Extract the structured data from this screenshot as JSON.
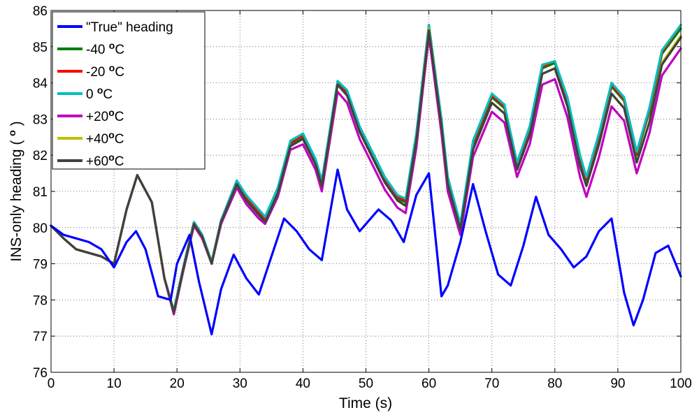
{
  "chart_data": {
    "type": "line",
    "xlabel": "Time (s)",
    "ylabel_prefix": "INS-only heading ( ",
    "ylabel_sup": "o",
    "ylabel_suffix": " )",
    "xlim": [
      0,
      100
    ],
    "ylim": [
      76,
      86
    ],
    "xticks": [
      0,
      10,
      20,
      30,
      40,
      50,
      60,
      70,
      80,
      90,
      100
    ],
    "yticks": [
      76,
      77,
      78,
      79,
      80,
      81,
      82,
      83,
      84,
      85,
      86
    ],
    "grid": true,
    "legend_position": "top-left",
    "series": [
      {
        "name": "true",
        "label_main": "\"True\" heading",
        "label_sup": "",
        "label_tail": "",
        "color": "#0000ff",
        "x": [
          0,
          2,
          4,
          6,
          8,
          10,
          12,
          13.5,
          15,
          17,
          19,
          20,
          22,
          23.5,
          25.5,
          27,
          29,
          31,
          33,
          35,
          37,
          39,
          41,
          43,
          45.5,
          47,
          49,
          52,
          54,
          56,
          58,
          60,
          62,
          63,
          65,
          67,
          69,
          71,
          73,
          75,
          77,
          79,
          81,
          83,
          85,
          87,
          89,
          91,
          92.5,
          94,
          96,
          98,
          100
        ],
        "y": [
          80.05,
          79.8,
          79.7,
          79.6,
          79.4,
          78.9,
          79.6,
          79.9,
          79.4,
          78.1,
          78.0,
          79.0,
          79.8,
          78.5,
          77.05,
          78.3,
          79.25,
          78.6,
          78.15,
          79.2,
          80.25,
          79.9,
          79.4,
          79.1,
          81.6,
          80.5,
          79.9,
          80.5,
          80.2,
          79.6,
          80.9,
          81.5,
          78.1,
          78.4,
          79.6,
          81.2,
          79.9,
          78.7,
          78.4,
          79.5,
          80.85,
          79.8,
          79.4,
          78.9,
          79.2,
          79.9,
          80.25,
          78.2,
          77.3,
          78.0,
          79.3,
          79.5,
          78.65
        ]
      },
      {
        "name": "m40",
        "label_main": "-40 ",
        "label_sup": "o",
        "label_tail": "C",
        "color": "#007f00",
        "x": [
          0,
          2,
          4,
          6,
          8,
          10,
          12,
          13.7,
          16,
          18,
          19.5,
          21,
          22.7,
          24,
          25.5,
          27,
          29.5,
          31,
          33,
          34,
          36,
          38,
          40,
          42,
          43,
          45.5,
          47,
          49,
          51,
          53,
          55,
          56.3,
          58,
          60,
          62,
          63,
          65,
          67,
          70,
          72,
          74,
          76,
          78,
          80,
          82,
          84,
          85,
          87,
          89,
          91,
          93,
          95,
          97,
          100
        ],
        "y": [
          80.05,
          79.7,
          79.4,
          79.3,
          79.2,
          79.0,
          80.5,
          81.45,
          80.7,
          78.6,
          77.7,
          78.9,
          80.15,
          79.8,
          79.05,
          80.2,
          81.25,
          80.8,
          80.4,
          80.2,
          81.0,
          82.3,
          82.5,
          81.8,
          81.2,
          84.0,
          83.7,
          82.7,
          82.0,
          81.3,
          80.8,
          80.7,
          82.5,
          85.6,
          82.9,
          81.3,
          80.0,
          82.3,
          83.6,
          83.3,
          81.7,
          82.7,
          84.4,
          84.55,
          83.5,
          81.9,
          81.3,
          82.5,
          83.9,
          83.5,
          82.0,
          83.2,
          84.8,
          85.5
        ]
      },
      {
        "name": "m20",
        "label_main": "-20 ",
        "label_sup": "o",
        "label_tail": "C",
        "color": "#ff0000",
        "x": [
          0,
          2,
          4,
          6,
          8,
          10,
          12,
          13.7,
          16,
          18,
          19.5,
          21,
          22.7,
          24,
          25.5,
          27,
          29.5,
          31,
          33,
          34,
          36,
          38,
          40,
          42,
          43,
          45.5,
          47,
          49,
          51,
          53,
          55,
          56.3,
          58,
          60,
          62,
          63,
          65,
          67,
          70,
          72,
          74,
          76,
          78,
          80,
          82,
          84,
          85,
          87,
          89,
          91,
          93,
          95,
          97,
          100
        ],
        "y": [
          80.05,
          79.7,
          79.4,
          79.3,
          79.2,
          79.0,
          80.5,
          81.45,
          80.7,
          78.6,
          77.7,
          78.9,
          80.15,
          79.8,
          79.05,
          80.2,
          81.3,
          80.85,
          80.45,
          80.25,
          81.05,
          82.35,
          82.55,
          81.85,
          81.25,
          84.05,
          83.75,
          82.75,
          82.05,
          81.35,
          80.85,
          80.75,
          82.55,
          85.6,
          82.95,
          81.35,
          80.05,
          82.35,
          83.65,
          83.35,
          81.75,
          82.75,
          84.45,
          84.6,
          83.55,
          81.95,
          81.35,
          82.55,
          83.95,
          83.55,
          82.05,
          83.25,
          84.85,
          85.6
        ]
      },
      {
        "name": "z0",
        "label_main": "  0 ",
        "label_sup": "o",
        "label_tail": "C",
        "color": "#00bfbf",
        "x": [
          0,
          2,
          4,
          6,
          8,
          10,
          12,
          13.7,
          16,
          18,
          19.5,
          21,
          22.7,
          24,
          25.5,
          27,
          29.5,
          31,
          33,
          34,
          36,
          38,
          40,
          42,
          43,
          45.5,
          47,
          49,
          51,
          53,
          55,
          56.3,
          58,
          60,
          62,
          63,
          65,
          67,
          70,
          72,
          74,
          76,
          78,
          80,
          82,
          84,
          85,
          87,
          89,
          91,
          93,
          95,
          97,
          100
        ],
        "y": [
          80.05,
          79.7,
          79.4,
          79.3,
          79.2,
          79.0,
          80.5,
          81.45,
          80.7,
          78.6,
          77.7,
          78.9,
          80.15,
          79.8,
          79.05,
          80.2,
          81.3,
          80.9,
          80.5,
          80.3,
          81.1,
          82.4,
          82.6,
          81.9,
          81.3,
          84.05,
          83.8,
          82.8,
          82.1,
          81.4,
          80.9,
          80.8,
          82.6,
          85.6,
          83.0,
          81.4,
          80.1,
          82.4,
          83.7,
          83.4,
          81.8,
          82.8,
          84.5,
          84.6,
          83.6,
          82.0,
          81.4,
          82.6,
          84.0,
          83.6,
          82.1,
          83.3,
          84.9,
          85.6
        ]
      },
      {
        "name": "p20",
        "label_main": "+20",
        "label_sup": "o",
        "label_tail": "C",
        "color": "#bf00bf",
        "x": [
          0,
          2,
          4,
          6,
          8,
          10,
          12,
          13.7,
          16,
          18,
          19.5,
          21,
          22.7,
          24,
          25.5,
          27,
          29.5,
          31,
          33,
          34,
          36,
          38,
          40,
          42,
          43,
          45.5,
          47,
          49,
          51,
          53,
          55,
          56.3,
          58,
          60,
          62,
          63,
          65,
          67,
          70,
          72,
          74,
          76,
          78,
          80,
          82,
          84,
          85,
          87,
          89,
          91,
          93,
          95,
          97,
          100
        ],
        "y": [
          80.05,
          79.7,
          79.4,
          79.3,
          79.2,
          79.0,
          80.5,
          81.45,
          80.7,
          78.6,
          77.6,
          78.8,
          80.05,
          79.7,
          79.0,
          80.1,
          81.1,
          80.65,
          80.25,
          80.1,
          80.85,
          82.15,
          82.3,
          81.6,
          81.0,
          83.75,
          83.45,
          82.45,
          81.75,
          81.05,
          80.55,
          80.4,
          82.2,
          85.3,
          82.6,
          81.0,
          79.8,
          81.95,
          83.2,
          82.9,
          81.4,
          82.3,
          83.95,
          84.1,
          83.05,
          81.4,
          80.85,
          81.95,
          83.35,
          82.95,
          81.5,
          82.6,
          84.2,
          84.95
        ]
      },
      {
        "name": "p40",
        "label_main": "+40",
        "label_sup": "o",
        "label_tail": "C",
        "color": "#bfbf00",
        "x": [
          0,
          2,
          4,
          6,
          8,
          10,
          12,
          13.7,
          16,
          18,
          19.5,
          21,
          22.7,
          24,
          25.5,
          27,
          29.5,
          31,
          33,
          34,
          36,
          38,
          40,
          42,
          43,
          45.5,
          47,
          49,
          51,
          53,
          55,
          56.3,
          58,
          60,
          62,
          63,
          65,
          67,
          70,
          72,
          74,
          76,
          78,
          80,
          82,
          84,
          85,
          87,
          89,
          91,
          93,
          95,
          97,
          100
        ],
        "y": [
          80.05,
          79.7,
          79.4,
          79.3,
          79.2,
          79.0,
          80.5,
          81.45,
          80.7,
          78.6,
          77.65,
          78.85,
          80.1,
          79.75,
          79.0,
          80.15,
          81.2,
          80.75,
          80.35,
          80.15,
          80.95,
          82.25,
          82.45,
          81.75,
          81.15,
          83.95,
          83.65,
          82.65,
          81.95,
          81.25,
          80.75,
          80.6,
          82.4,
          85.5,
          82.8,
          81.2,
          79.95,
          82.15,
          83.45,
          83.15,
          81.6,
          82.55,
          84.25,
          84.4,
          83.35,
          81.7,
          81.15,
          82.3,
          83.7,
          83.3,
          81.8,
          82.9,
          84.55,
          85.3
        ]
      },
      {
        "name": "p60",
        "label_main": "+60",
        "label_sup": "o",
        "label_tail": "C",
        "color": "#404040",
        "x": [
          0,
          2,
          4,
          6,
          8,
          10,
          12,
          13.7,
          16,
          18,
          19.5,
          21,
          22.7,
          24,
          25.5,
          27,
          29.5,
          31,
          33,
          34,
          36,
          38,
          40,
          42,
          43,
          45.5,
          47,
          49,
          51,
          53,
          55,
          56.3,
          58,
          60,
          62,
          63,
          65,
          67,
          70,
          72,
          74,
          76,
          78,
          80,
          82,
          84,
          85,
          87,
          89,
          91,
          93,
          95,
          97,
          100
        ],
        "y": [
          80.05,
          79.7,
          79.4,
          79.3,
          79.2,
          79.0,
          80.5,
          81.45,
          80.7,
          78.6,
          77.65,
          78.85,
          80.1,
          79.75,
          79.0,
          80.15,
          81.2,
          80.75,
          80.35,
          80.15,
          80.95,
          82.25,
          82.45,
          81.75,
          81.15,
          83.95,
          83.65,
          82.65,
          81.95,
          81.25,
          80.75,
          80.6,
          82.4,
          85.45,
          82.8,
          81.2,
          79.95,
          82.15,
          83.45,
          83.15,
          81.6,
          82.55,
          84.25,
          84.4,
          83.35,
          81.7,
          81.15,
          82.3,
          83.7,
          83.3,
          81.8,
          82.9,
          84.5,
          85.25
        ]
      }
    ]
  }
}
